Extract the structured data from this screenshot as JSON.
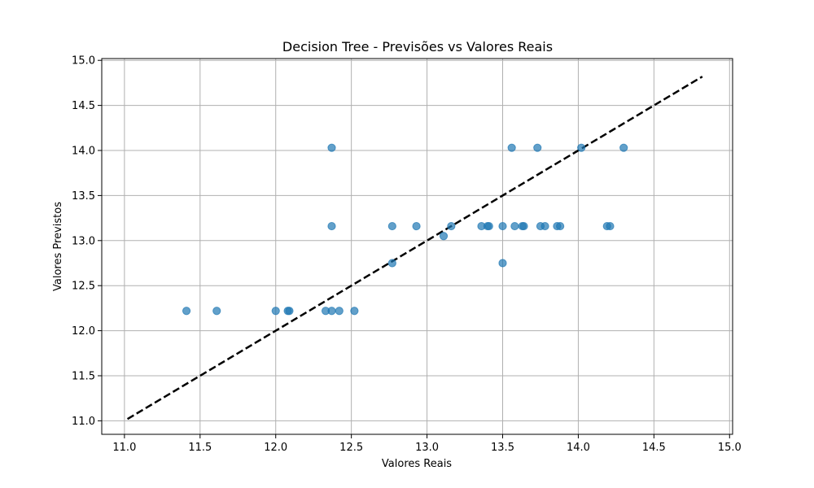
{
  "chart_data": {
    "type": "scatter",
    "title": "Decision Tree - Previsões vs Valores Reais",
    "xlabel": "Valores Reais",
    "ylabel": "Valores Previstos",
    "xlim": [
      10.85,
      15.02
    ],
    "ylim": [
      10.85,
      15.02
    ],
    "xticks": [
      11.0,
      11.5,
      12.0,
      12.5,
      13.0,
      13.5,
      14.0,
      14.5,
      15.0
    ],
    "yticks": [
      11.0,
      11.5,
      12.0,
      12.5,
      13.0,
      13.5,
      14.0,
      14.5,
      15.0
    ],
    "grid": true,
    "point_color": "#1f77b4",
    "point_opacity": 0.7,
    "points": [
      {
        "x": 11.41,
        "y": 12.22
      },
      {
        "x": 11.61,
        "y": 12.22
      },
      {
        "x": 12.0,
        "y": 12.22
      },
      {
        "x": 12.08,
        "y": 12.22
      },
      {
        "x": 12.09,
        "y": 12.22
      },
      {
        "x": 12.33,
        "y": 12.22
      },
      {
        "x": 12.37,
        "y": 12.22
      },
      {
        "x": 12.42,
        "y": 12.22
      },
      {
        "x": 12.52,
        "y": 12.22
      },
      {
        "x": 12.37,
        "y": 14.03
      },
      {
        "x": 12.37,
        "y": 13.16
      },
      {
        "x": 12.77,
        "y": 13.16
      },
      {
        "x": 12.77,
        "y": 12.75
      },
      {
        "x": 12.93,
        "y": 13.16
      },
      {
        "x": 13.11,
        "y": 13.05
      },
      {
        "x": 13.16,
        "y": 13.16
      },
      {
        "x": 13.36,
        "y": 13.16
      },
      {
        "x": 13.4,
        "y": 13.16
      },
      {
        "x": 13.41,
        "y": 13.16
      },
      {
        "x": 13.5,
        "y": 13.16
      },
      {
        "x": 13.5,
        "y": 12.75
      },
      {
        "x": 13.56,
        "y": 14.03
      },
      {
        "x": 13.58,
        "y": 13.16
      },
      {
        "x": 13.63,
        "y": 13.16
      },
      {
        "x": 13.64,
        "y": 13.16
      },
      {
        "x": 13.73,
        "y": 14.03
      },
      {
        "x": 13.75,
        "y": 13.16
      },
      {
        "x": 13.78,
        "y": 13.16
      },
      {
        "x": 13.86,
        "y": 13.16
      },
      {
        "x": 13.88,
        "y": 13.16
      },
      {
        "x": 14.02,
        "y": 14.03
      },
      {
        "x": 14.19,
        "y": 13.16
      },
      {
        "x": 14.21,
        "y": 13.16
      },
      {
        "x": 14.3,
        "y": 14.03
      }
    ],
    "reference_line": {
      "from": [
        11.02,
        11.02
      ],
      "to": [
        14.82,
        14.82
      ],
      "color": "#000000",
      "style": "dashed"
    }
  }
}
